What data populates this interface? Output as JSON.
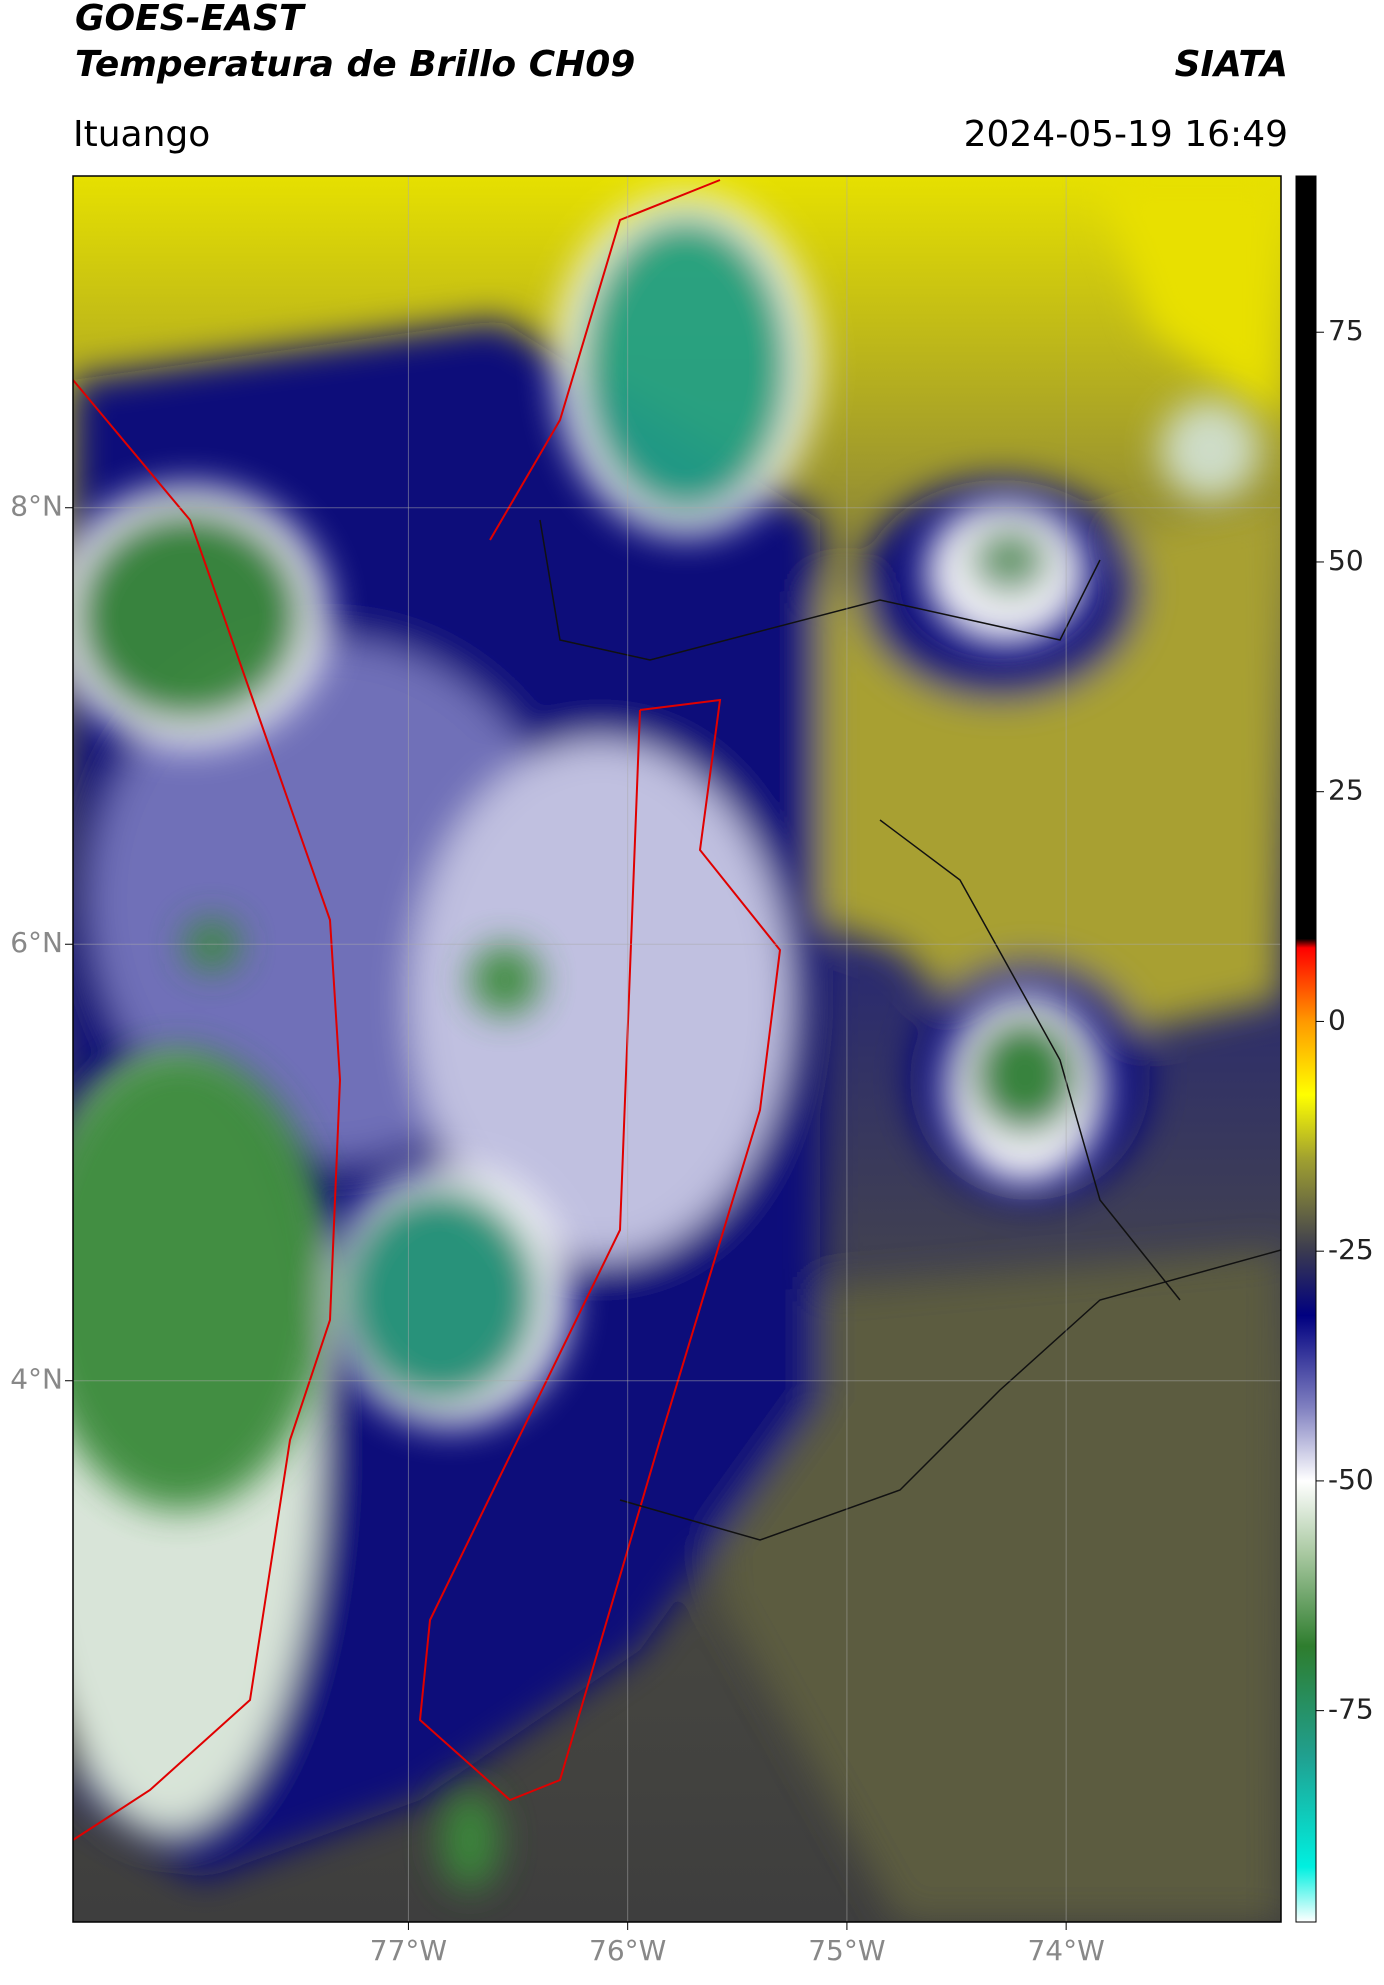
{
  "chart_data": {
    "type": "map",
    "title": "GOES-EAST",
    "subtitle": "Temperatura de Brillo CH09",
    "source": "SIATA",
    "region": "Ituango",
    "timestamp": "2024-05-19 16:49",
    "xlim": [
      -78.53,
      -73.02
    ],
    "ylim": [
      1.52,
      9.52
    ],
    "xticks": [
      {
        "value": -77,
        "label": "77°W"
      },
      {
        "value": -76,
        "label": "76°W"
      },
      {
        "value": -75,
        "label": "75°W"
      },
      {
        "value": -74,
        "label": "74°W"
      }
    ],
    "yticks": [
      {
        "value": 8,
        "label": "8°N"
      },
      {
        "value": 6,
        "label": "6°N"
      },
      {
        "value": 4,
        "label": "4°N"
      }
    ],
    "grid": true,
    "colorbar": {
      "lim": [
        -98,
        92
      ],
      "ticks": [
        75,
        50,
        25,
        0,
        -25,
        -50,
        -75
      ],
      "colors": [
        {
          "value": -98,
          "color": "#ffffff"
        },
        {
          "value": -92,
          "color": "#00f0e0"
        },
        {
          "value": -80,
          "color": "#20a090"
        },
        {
          "value": -68,
          "color": "#2e7d2e"
        },
        {
          "value": -58,
          "color": "#a8c8a0"
        },
        {
          "value": -50,
          "color": "#ffffff"
        },
        {
          "value": -42,
          "color": "#8080c0"
        },
        {
          "value": -32,
          "color": "#000080"
        },
        {
          "value": -25,
          "color": "#3a3a50"
        },
        {
          "value": -15,
          "color": "#a0a030"
        },
        {
          "value": -8,
          "color": "#ffff00"
        },
        {
          "value": 0,
          "color": "#ff9900"
        },
        {
          "value": 8,
          "color": "#ff0000"
        },
        {
          "value": 9,
          "color": "#000000"
        },
        {
          "value": 92,
          "color": "#000000"
        }
      ]
    }
  }
}
